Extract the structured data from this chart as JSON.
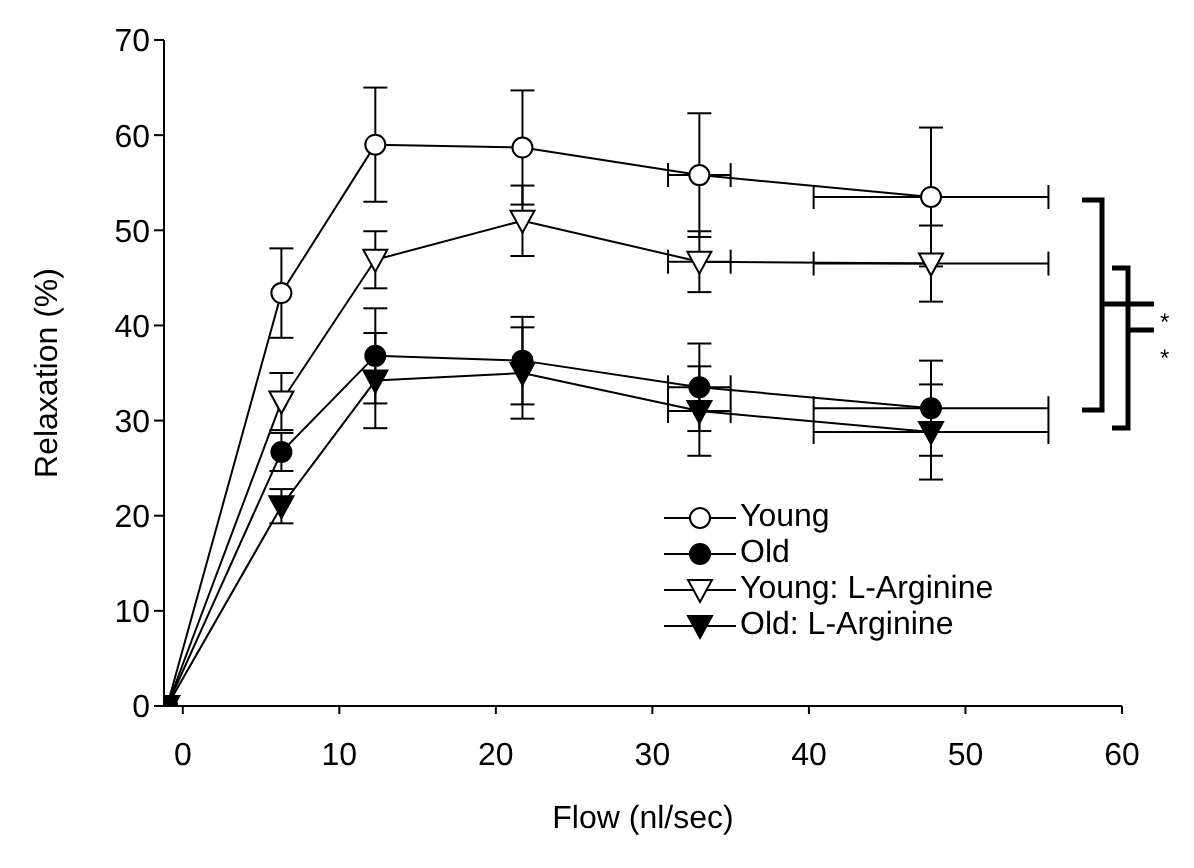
{
  "chart_data": {
    "type": "line",
    "xlabel": "Flow (nl/sec)",
    "ylabel": "Relaxation (%)",
    "x": [
      -1,
      6.3,
      12.3,
      21.7,
      33,
      47.8
    ],
    "series": [
      {
        "name": "Young",
        "color": "#ffffff",
        "marker": "circle",
        "values": [
          0,
          43.4,
          59,
          58.7,
          55.8,
          53.5
        ],
        "errors": [
          null,
          4.7,
          6,
          6,
          6.5,
          7.3
        ],
        "xerrors": [
          null,
          null,
          null,
          null,
          2,
          7.5
        ]
      },
      {
        "name": "Old",
        "color": "#000000",
        "marker": "circle",
        "values": [
          0,
          26.7,
          36.8,
          36.3,
          33.5,
          31.3
        ],
        "errors": [
          null,
          2,
          5,
          4.6,
          4.6,
          5
        ],
        "xerrors": [
          null,
          null,
          null,
          null,
          2,
          7.5
        ]
      },
      {
        "name": "Young: L-Arginine",
        "color": "#ffffff",
        "marker": "triangle",
        "values": [
          0,
          32,
          46.9,
          51,
          46.7,
          46.5
        ],
        "errors": [
          null,
          3,
          3,
          3.7,
          3.2,
          4
        ],
        "xerrors": [
          null,
          null,
          null,
          null,
          2,
          7.5
        ]
      },
      {
        "name": "Old: L-Arginine",
        "color": "#000000",
        "marker": "triangle",
        "values": [
          0,
          21,
          34.2,
          35,
          31,
          28.8
        ],
        "errors": [
          null,
          1.8,
          5,
          4.8,
          4.7,
          5
        ],
        "xerrors": [
          null,
          null,
          null,
          null,
          2,
          7.5
        ]
      }
    ],
    "xlim": [
      -1.2,
      60
    ],
    "xticks": [
      0,
      10,
      20,
      30,
      40,
      50,
      60
    ],
    "ylim": [
      0,
      70
    ],
    "yticks": [
      0,
      10,
      20,
      30,
      40,
      50,
      60,
      70
    ],
    "grid": false,
    "legend": "bottom right",
    "annotations": [
      "*",
      "*"
    ]
  }
}
